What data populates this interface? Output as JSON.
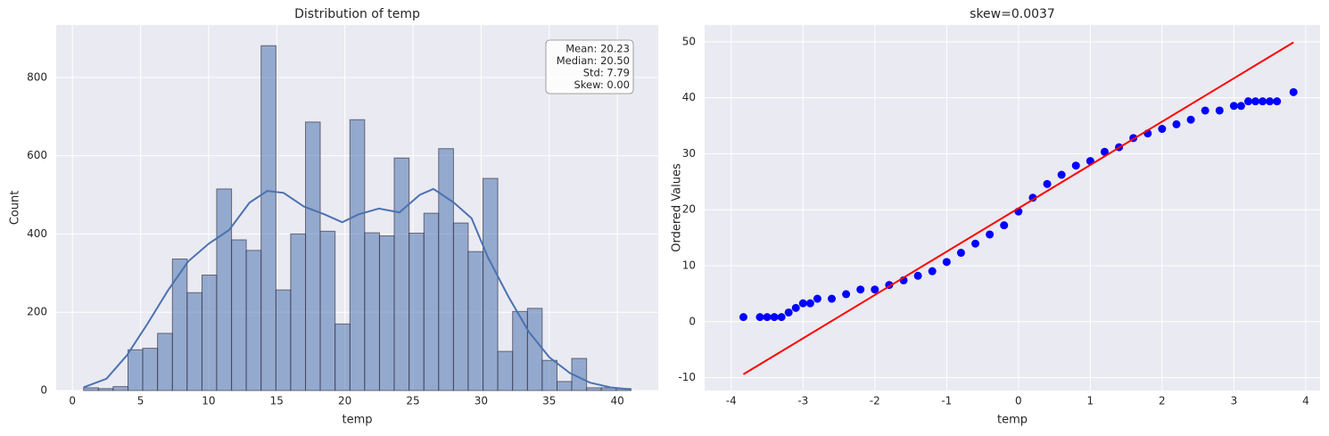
{
  "chart_data": [
    {
      "type": "histogram",
      "title": "Distribution of temp",
      "x_label": "temp",
      "y_label": "Count",
      "bins": [
        0.82,
        1.91,
        2.99,
        4.08,
        5.16,
        6.25,
        7.34,
        8.42,
        9.51,
        10.59,
        11.68,
        12.76,
        13.85,
        14.94,
        16.02,
        17.11,
        18.19,
        19.28,
        20.37,
        21.45,
        22.54,
        23.62,
        24.71,
        25.8,
        26.88,
        27.97,
        29.05,
        30.14,
        31.22,
        32.31,
        33.4,
        34.48,
        35.57,
        36.65,
        37.74,
        38.82,
        39.91,
        41.0
      ],
      "counts": [
        7,
        5,
        10,
        104,
        108,
        146,
        336,
        250,
        295,
        515,
        385,
        358,
        881,
        257,
        400,
        686,
        407,
        170,
        692,
        403,
        395,
        594,
        402,
        453,
        618,
        428,
        355,
        542,
        100,
        202,
        210,
        77,
        23,
        82,
        7,
        7,
        5
      ],
      "color": "#4c72b0",
      "kde": {
        "color": "#4c72b0",
        "x": [
          0.82,
          2.5,
          4,
          5.5,
          7,
          8.5,
          10,
          11.5,
          13,
          14.3,
          15.5,
          17,
          18.5,
          19.8,
          21,
          22.5,
          24,
          25.5,
          26.5,
          28,
          29.3,
          30.5,
          32,
          33.5,
          35,
          36.5,
          38,
          39.5,
          41
        ],
        "y": [
          8,
          30,
          90,
          170,
          255,
          330,
          375,
          410,
          480,
          510,
          505,
          470,
          450,
          430,
          450,
          465,
          455,
          500,
          515,
          480,
          440,
          340,
          240,
          150,
          85,
          45,
          20,
          8,
          3
        ]
      },
      "annotation": [
        "Mean: 20.23",
        "Median: 20.50",
        "Std: 7.79",
        "Skew: 0.00"
      ],
      "xlim": [
        -1.19,
        43.0
      ],
      "ylim": [
        0,
        934
      ],
      "xticks": [
        0,
        5,
        10,
        15,
        20,
        25,
        30,
        35,
        40
      ],
      "yticks": [
        0,
        200,
        400,
        600,
        800
      ],
      "grid": true
    },
    {
      "type": "scatter",
      "title": "skew=0.0037",
      "x_label": "temp",
      "y_label": "Ordered Values",
      "series": [
        {
          "color": "#0000ff",
          "x": [
            -3.83,
            -3.6,
            -3.5,
            -3.4,
            -3.3,
            -3.2,
            -3.1,
            -3.0,
            -2.9,
            -2.8,
            -2.6,
            -2.4,
            -2.2,
            -2.0,
            -1.8,
            -1.6,
            -1.4,
            -1.2,
            -1.0,
            -0.8,
            -0.6,
            -0.4,
            -0.2,
            0,
            0.2,
            0.4,
            0.6,
            0.8,
            1.0,
            1.2,
            1.4,
            1.6,
            1.8,
            2.0,
            2.2,
            2.4,
            2.6,
            2.8,
            3.0,
            3.1,
            3.2,
            3.3,
            3.4,
            3.5,
            3.6,
            3.83
          ],
          "y": [
            0.82,
            0.82,
            0.82,
            0.82,
            0.82,
            1.64,
            2.46,
            3.28,
            3.28,
            4.1,
            4.1,
            4.92,
            5.74,
            5.74,
            6.56,
            7.38,
            8.2,
            9.02,
            10.66,
            12.3,
            13.94,
            15.58,
            17.22,
            19.68,
            22.14,
            24.6,
            26.24,
            27.88,
            28.7,
            30.34,
            31.16,
            32.8,
            33.62,
            34.44,
            35.26,
            36.08,
            37.72,
            37.72,
            38.54,
            38.54,
            39.36,
            39.36,
            39.36,
            39.36,
            39.36,
            41.0
          ]
        }
      ],
      "fit_line": {
        "color": "#ff0000",
        "x": [
          -3.83,
          3.83
        ],
        "y": [
          -9.4,
          49.9
        ]
      },
      "xlim": [
        -4.37,
        4.2
      ],
      "ylim": [
        -12.3,
        53.0
      ],
      "xticks": [
        -4,
        -3,
        -2,
        -1,
        0,
        1,
        2,
        3,
        4
      ],
      "yticks": [
        -10,
        0,
        10,
        20,
        30,
        40,
        50
      ],
      "grid": true
    }
  ]
}
